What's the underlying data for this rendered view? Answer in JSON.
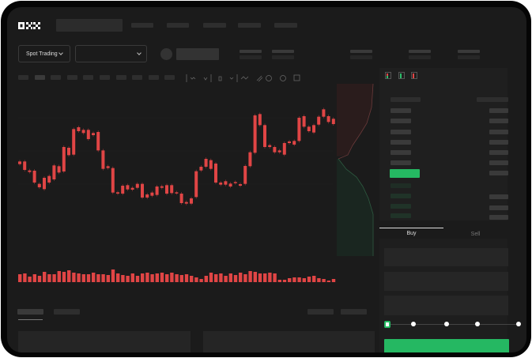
{
  "header": {
    "logo": "OKX",
    "nav_items": 5
  },
  "toolbar": {
    "market_dropdown": "Spot Trading",
    "pair_dropdown": ""
  },
  "trade": {
    "tabs": [
      {
        "label": "Buy",
        "active": true
      },
      {
        "label": "Sell",
        "active": false
      }
    ],
    "slider_level_percent": 0,
    "buy_button_color": "#25b862"
  },
  "colors": {
    "up": "#2ebd6b",
    "down": "#e04545",
    "accent": "#25b862",
    "background": "#1b1b1b"
  },
  "chart_data": {
    "type": "candlestick",
    "title": "",
    "xlabel": "",
    "ylabel": "",
    "ylim": [
      0,
      435
    ],
    "grid": true,
    "candles": [
      [
        185,
        175
      ],
      [
        185,
        153
      ],
      [
        151,
        145
      ],
      [
        150,
        105
      ],
      [
        100,
        87
      ],
      [
        123,
        80
      ],
      [
        130,
        105
      ],
      [
        170,
        117
      ],
      [
        167,
        143
      ],
      [
        240,
        147
      ],
      [
        237,
        209
      ],
      [
        308,
        211
      ],
      [
        315,
        300
      ],
      [
        305,
        293
      ],
      [
        305,
        270
      ],
      [
        293,
        285
      ],
      [
        297,
        227
      ],
      [
        227,
        157
      ],
      [
        167,
        160
      ],
      [
        160,
        67
      ],
      [
        68,
        63
      ],
      [
        93,
        63
      ],
      [
        95,
        79
      ],
      [
        85,
        78
      ],
      [
        100,
        85
      ],
      [
        100,
        48
      ],
      [
        60,
        48
      ],
      [
        67,
        55
      ],
      [
        90,
        58
      ],
      [
        91,
        85
      ],
      [
        95,
        63
      ],
      [
        95,
        65
      ],
      [
        68,
        65
      ],
      [
        63,
        27
      ],
      [
        31,
        25
      ],
      [
        45,
        25
      ],
      [
        148,
        50
      ],
      [
        165,
        151
      ],
      [
        195,
        165
      ],
      [
        190,
        157
      ],
      [
        177,
        105
      ],
      [
        105,
        97
      ],
      [
        110,
        97
      ],
      [
        101,
        90
      ],
      [
        107,
        103
      ],
      [
        99,
        93
      ],
      [
        168,
        100
      ],
      [
        220,
        167
      ],
      [
        360,
        218
      ],
      [
        365,
        323
      ],
      [
        323,
        240
      ],
      [
        247,
        240
      ],
      [
        240,
        220
      ],
      [
        227,
        220
      ],
      [
        255,
        211
      ],
      [
        261,
        255
      ],
      [
        263,
        249
      ],
      [
        351,
        263
      ],
      [
        357,
        317
      ],
      [
        317,
        300
      ],
      [
        323,
        295
      ],
      [
        355,
        325
      ],
      [
        383,
        355
      ],
      [
        357,
        335
      ],
      [
        347,
        327
      ]
    ],
    "volumes": [
      10,
      11,
      7,
      10,
      8,
      13,
      10,
      10,
      14,
      13,
      15,
      12,
      11,
      10,
      10,
      12,
      10,
      10,
      9,
      16,
      11,
      9,
      8,
      11,
      8,
      11,
      12,
      10,
      11,
      12,
      10,
      12,
      10,
      9,
      10,
      8,
      6,
      4,
      8,
      12,
      10,
      11,
      8,
      11,
      9,
      12,
      10,
      14,
      13,
      11,
      11,
      12,
      11,
      3,
      3,
      5,
      6,
      6,
      5,
      7,
      8,
      5,
      4,
      2,
      4
    ]
  }
}
